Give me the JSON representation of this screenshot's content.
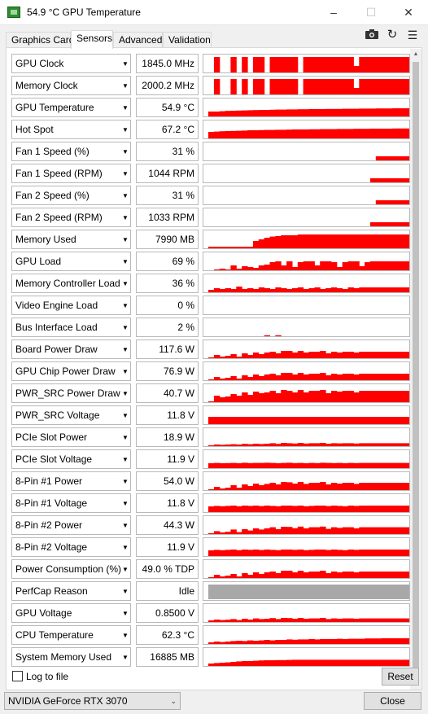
{
  "window": {
    "title": "54.9 °C GPU Temperature"
  },
  "tabs": [
    "Graphics Card",
    "Sensors",
    "Advanced",
    "Validation"
  ],
  "toolbar_icons": [
    "camera-icon",
    "refresh-icon",
    "menu-icon"
  ],
  "graph_color": "#ff0000",
  "perfcap_color": "#a8a8a8",
  "sensors": [
    {
      "name": "GPU Clock",
      "value": "1845.0 MHz",
      "graph": [
        0,
        0.95,
        0,
        0,
        0.95,
        0,
        0.95,
        0,
        0.95,
        0.95,
        0,
        0.95,
        0.95,
        0.95,
        0.95,
        0.95,
        0,
        0.95,
        0.95,
        0.95,
        0.95,
        0.95,
        0.95,
        0.95,
        0.95,
        0.95,
        0.4,
        0.95,
        0.95,
        0.95,
        0.95,
        0.95,
        0.95,
        0.95,
        0.95,
        0.95
      ]
    },
    {
      "name": "Memory Clock",
      "value": "2000.2 MHz",
      "graph": [
        0,
        0.95,
        0,
        0,
        0.95,
        0,
        0.95,
        0,
        0.95,
        0.95,
        0,
        0.95,
        0.95,
        0.95,
        0.95,
        0.95,
        0,
        0.95,
        0.95,
        0.95,
        0.95,
        0.95,
        0.95,
        0.95,
        0.95,
        0.95,
        0.4,
        0.95,
        0.95,
        0.95,
        0.95,
        0.95,
        0.95,
        0.95,
        0.95,
        0.95
      ]
    },
    {
      "name": "GPU Temperature",
      "value": "54.9 °C",
      "graph": [
        0.3,
        0.3,
        0.32,
        0.34,
        0.35,
        0.36,
        0.37,
        0.38,
        0.39,
        0.4,
        0.4,
        0.41,
        0.42,
        0.42,
        0.43,
        0.43,
        0.44,
        0.44,
        0.45,
        0.45,
        0.45,
        0.46,
        0.46,
        0.46,
        0.47,
        0.47,
        0.47,
        0.48,
        0.48,
        0.48,
        0.49,
        0.49,
        0.49,
        0.5,
        0.5,
        0.5
      ]
    },
    {
      "name": "Hot Spot",
      "value": "67.2 °C",
      "graph": [
        0.4,
        0.42,
        0.44,
        0.45,
        0.46,
        0.47,
        0.48,
        0.5,
        0.5,
        0.51,
        0.52,
        0.52,
        0.53,
        0.53,
        0.54,
        0.55,
        0.55,
        0.55,
        0.56,
        0.56,
        0.57,
        0.57,
        0.57,
        0.58,
        0.58,
        0.58,
        0.59,
        0.59,
        0.59,
        0.6,
        0.6,
        0.6,
        0.6,
        0.61,
        0.61,
        0.61
      ]
    },
    {
      "name": "Fan 1 Speed (%)",
      "value": "31 %",
      "graph": [
        0,
        0,
        0,
        0,
        0,
        0,
        0,
        0,
        0,
        0,
        0,
        0,
        0,
        0,
        0,
        0,
        0,
        0,
        0,
        0,
        0,
        0,
        0,
        0,
        0,
        0,
        0,
        0,
        0,
        0,
        0.25,
        0.25,
        0.25,
        0.25,
        0.25,
        0.25
      ]
    },
    {
      "name": "Fan 1 Speed (RPM)",
      "value": "1044 RPM",
      "graph": [
        0,
        0,
        0,
        0,
        0,
        0,
        0,
        0,
        0,
        0,
        0,
        0,
        0,
        0,
        0,
        0,
        0,
        0,
        0,
        0,
        0,
        0,
        0,
        0,
        0,
        0,
        0,
        0,
        0,
        0.25,
        0.25,
        0.25,
        0.25,
        0.25,
        0.25,
        0.25
      ]
    },
    {
      "name": "Fan 2 Speed (%)",
      "value": "31 %",
      "graph": [
        0,
        0,
        0,
        0,
        0,
        0,
        0,
        0,
        0,
        0,
        0,
        0,
        0,
        0,
        0,
        0,
        0,
        0,
        0,
        0,
        0,
        0,
        0,
        0,
        0,
        0,
        0,
        0,
        0,
        0,
        0.25,
        0.25,
        0.25,
        0.25,
        0.25,
        0.25
      ]
    },
    {
      "name": "Fan 2 Speed (RPM)",
      "value": "1033 RPM",
      "graph": [
        0,
        0,
        0,
        0,
        0,
        0,
        0,
        0,
        0,
        0,
        0,
        0,
        0,
        0,
        0,
        0,
        0,
        0,
        0,
        0,
        0,
        0,
        0,
        0,
        0,
        0,
        0,
        0,
        0,
        0.25,
        0.25,
        0.25,
        0.25,
        0.25,
        0.25,
        0.25
      ]
    },
    {
      "name": "Memory Used",
      "value": "7990 MB",
      "graph": [
        0.1,
        0.1,
        0.1,
        0.1,
        0.1,
        0.1,
        0.1,
        0.1,
        0.45,
        0.55,
        0.65,
        0.72,
        0.75,
        0.8,
        0.8,
        0.8,
        0.85,
        0.85,
        0.85,
        0.85,
        0.85,
        0.85,
        0.85,
        0.85,
        0.85,
        0.85,
        0.85,
        0.85,
        0.85,
        0.85,
        0.85,
        0.85,
        0.85,
        0.85,
        0.85,
        0.85
      ]
    },
    {
      "name": "GPU Load",
      "value": "69 %",
      "graph": [
        0,
        0.05,
        0.1,
        0.05,
        0.3,
        0.1,
        0.25,
        0.2,
        0.15,
        0.3,
        0.35,
        0.5,
        0.55,
        0.3,
        0.55,
        0.2,
        0.5,
        0.55,
        0.55,
        0.3,
        0.55,
        0.55,
        0.5,
        0.2,
        0.5,
        0.55,
        0.55,
        0.25,
        0.5,
        0.55,
        0.55,
        0.55,
        0.55,
        0.55,
        0.55,
        0.55
      ]
    },
    {
      "name": "Memory Controller Load",
      "value": "36 %",
      "graph": [
        0.15,
        0.25,
        0.2,
        0.25,
        0.2,
        0.35,
        0.2,
        0.25,
        0.2,
        0.3,
        0.25,
        0.2,
        0.3,
        0.25,
        0.2,
        0.25,
        0.3,
        0.2,
        0.25,
        0.3,
        0.2,
        0.25,
        0.3,
        0.25,
        0.2,
        0.3,
        0.25,
        0.3,
        0.3,
        0.3,
        0.3,
        0.3,
        0.3,
        0.3,
        0.3,
        0.3
      ]
    },
    {
      "name": "Video Engine Load",
      "value": "0 %",
      "graph": [
        0,
        0,
        0,
        0,
        0,
        0,
        0,
        0,
        0,
        0,
        0,
        0,
        0,
        0,
        0,
        0,
        0,
        0,
        0,
        0,
        0,
        0,
        0,
        0,
        0,
        0,
        0,
        0,
        0,
        0,
        0,
        0,
        0,
        0,
        0,
        0
      ]
    },
    {
      "name": "Bus Interface Load",
      "value": "2 %",
      "graph": [
        0,
        0,
        0,
        0,
        0,
        0,
        0,
        0,
        0,
        0,
        0.06,
        0,
        0.06,
        0,
        0,
        0,
        0,
        0,
        0,
        0,
        0,
        0,
        0,
        0,
        0,
        0,
        0,
        0,
        0,
        0,
        0,
        0,
        0,
        0,
        0,
        0
      ]
    },
    {
      "name": "Board Power Draw",
      "value": "117.6 W",
      "graph": [
        0.05,
        0.2,
        0.1,
        0.15,
        0.25,
        0.1,
        0.3,
        0.2,
        0.35,
        0.25,
        0.35,
        0.4,
        0.3,
        0.45,
        0.45,
        0.35,
        0.45,
        0.35,
        0.4,
        0.4,
        0.45,
        0.3,
        0.4,
        0.35,
        0.4,
        0.4,
        0.35,
        0.4,
        0.4,
        0.4,
        0.4,
        0.4,
        0.4,
        0.4,
        0.4,
        0.4
      ]
    },
    {
      "name": "GPU Chip Power Draw",
      "value": "76.9 W",
      "graph": [
        0.05,
        0.2,
        0.1,
        0.15,
        0.25,
        0.1,
        0.3,
        0.2,
        0.35,
        0.25,
        0.35,
        0.4,
        0.3,
        0.45,
        0.45,
        0.35,
        0.45,
        0.35,
        0.4,
        0.4,
        0.45,
        0.3,
        0.4,
        0.35,
        0.4,
        0.4,
        0.35,
        0.4,
        0.4,
        0.4,
        0.4,
        0.4,
        0.4,
        0.4,
        0.4,
        0.4
      ]
    },
    {
      "name": "PWR_SRC Power Draw",
      "value": "40.7 W",
      "graph": [
        0.05,
        0.4,
        0.3,
        0.35,
        0.5,
        0.4,
        0.6,
        0.45,
        0.65,
        0.55,
        0.6,
        0.7,
        0.55,
        0.75,
        0.7,
        0.6,
        0.75,
        0.6,
        0.7,
        0.7,
        0.75,
        0.55,
        0.7,
        0.65,
        0.7,
        0.7,
        0.6,
        0.7,
        0.7,
        0.7,
        0.7,
        0.7,
        0.7,
        0.7,
        0.7,
        0.7
      ]
    },
    {
      "name": "PWR_SRC Voltage",
      "value": "11.8 V",
      "graph": [
        0.45,
        0.45,
        0.45,
        0.45,
        0.45,
        0.45,
        0.45,
        0.45,
        0.45,
        0.45,
        0.45,
        0.45,
        0.45,
        0.45,
        0.45,
        0.45,
        0.45,
        0.45,
        0.45,
        0.45,
        0.45,
        0.45,
        0.45,
        0.45,
        0.45,
        0.45,
        0.45,
        0.45,
        0.45,
        0.45,
        0.45,
        0.45,
        0.45,
        0.45,
        0.45,
        0.45
      ]
    },
    {
      "name": "PCIe Slot Power",
      "value": "18.9 W",
      "graph": [
        0.05,
        0.1,
        0.08,
        0.1,
        0.12,
        0.1,
        0.14,
        0.12,
        0.15,
        0.13,
        0.15,
        0.18,
        0.14,
        0.2,
        0.18,
        0.16,
        0.2,
        0.16,
        0.18,
        0.18,
        0.2,
        0.15,
        0.18,
        0.17,
        0.18,
        0.18,
        0.16,
        0.18,
        0.18,
        0.18,
        0.18,
        0.18,
        0.18,
        0.18,
        0.18,
        0.18
      ]
    },
    {
      "name": "PCIe Slot Voltage",
      "value": "11.9 V",
      "graph": [
        0.3,
        0.32,
        0.3,
        0.31,
        0.32,
        0.3,
        0.33,
        0.31,
        0.32,
        0.32,
        0.33,
        0.32,
        0.3,
        0.32,
        0.33,
        0.31,
        0.32,
        0.3,
        0.32,
        0.31,
        0.33,
        0.32,
        0.31,
        0.32,
        0.3,
        0.32,
        0.31,
        0.32,
        0.32,
        0.32,
        0.32,
        0.32,
        0.32,
        0.32,
        0.32,
        0.32
      ]
    },
    {
      "name": "8-Pin #1 Power",
      "value": "54.0 W",
      "graph": [
        0.05,
        0.2,
        0.1,
        0.15,
        0.3,
        0.15,
        0.35,
        0.25,
        0.4,
        0.3,
        0.38,
        0.45,
        0.35,
        0.5,
        0.48,
        0.4,
        0.5,
        0.38,
        0.45,
        0.45,
        0.5,
        0.35,
        0.45,
        0.4,
        0.45,
        0.45,
        0.38,
        0.45,
        0.45,
        0.45,
        0.45,
        0.45,
        0.45,
        0.45,
        0.45,
        0.45
      ]
    },
    {
      "name": "8-Pin #1 Voltage",
      "value": "11.8 V",
      "graph": [
        0.35,
        0.38,
        0.36,
        0.38,
        0.4,
        0.36,
        0.4,
        0.38,
        0.4,
        0.37,
        0.4,
        0.38,
        0.36,
        0.4,
        0.4,
        0.38,
        0.4,
        0.36,
        0.38,
        0.4,
        0.4,
        0.37,
        0.4,
        0.38,
        0.36,
        0.4,
        0.38,
        0.4,
        0.4,
        0.4,
        0.4,
        0.4,
        0.4,
        0.4,
        0.4,
        0.4
      ]
    },
    {
      "name": "8-Pin #2 Power",
      "value": "44.3 W",
      "graph": [
        0.05,
        0.18,
        0.1,
        0.14,
        0.28,
        0.12,
        0.3,
        0.22,
        0.35,
        0.28,
        0.35,
        0.42,
        0.3,
        0.45,
        0.44,
        0.36,
        0.46,
        0.35,
        0.42,
        0.42,
        0.46,
        0.32,
        0.42,
        0.38,
        0.42,
        0.42,
        0.35,
        0.42,
        0.42,
        0.42,
        0.42,
        0.42,
        0.42,
        0.42,
        0.42,
        0.42
      ]
    },
    {
      "name": "8-Pin #2 Voltage",
      "value": "11.9 V",
      "graph": [
        0.35,
        0.38,
        0.36,
        0.38,
        0.4,
        0.36,
        0.4,
        0.38,
        0.4,
        0.37,
        0.4,
        0.38,
        0.36,
        0.4,
        0.4,
        0.38,
        0.4,
        0.36,
        0.38,
        0.4,
        0.4,
        0.37,
        0.4,
        0.38,
        0.36,
        0.4,
        0.38,
        0.4,
        0.4,
        0.4,
        0.4,
        0.4,
        0.4,
        0.4,
        0.4,
        0.4
      ]
    },
    {
      "name": "Power Consumption (%)",
      "value": "49.0 % TDP",
      "graph": [
        0.05,
        0.2,
        0.1,
        0.15,
        0.25,
        0.1,
        0.3,
        0.2,
        0.35,
        0.25,
        0.35,
        0.4,
        0.3,
        0.45,
        0.45,
        0.35,
        0.45,
        0.35,
        0.4,
        0.4,
        0.45,
        0.3,
        0.4,
        0.35,
        0.4,
        0.4,
        0.35,
        0.4,
        0.4,
        0.4,
        0.4,
        0.4,
        0.4,
        0.4,
        0.4,
        0.4
      ]
    },
    {
      "name": "PerfCap Reason",
      "value": "Idle",
      "graph": []
    },
    {
      "name": "GPU Voltage",
      "value": "0.8500 V",
      "graph": [
        0.1,
        0.15,
        0.12,
        0.14,
        0.18,
        0.12,
        0.2,
        0.15,
        0.22,
        0.18,
        0.2,
        0.24,
        0.18,
        0.25,
        0.24,
        0.2,
        0.25,
        0.2,
        0.22,
        0.22,
        0.25,
        0.18,
        0.22,
        0.2,
        0.22,
        0.22,
        0.2,
        0.22,
        0.22,
        0.22,
        0.22,
        0.22,
        0.22,
        0.22,
        0.22,
        0.22
      ]
    },
    {
      "name": "CPU Temperature",
      "value": "62.3 °C",
      "graph": [
        0.1,
        0.15,
        0.12,
        0.15,
        0.18,
        0.2,
        0.18,
        0.22,
        0.2,
        0.22,
        0.25,
        0.22,
        0.25,
        0.25,
        0.28,
        0.26,
        0.28,
        0.28,
        0.3,
        0.28,
        0.3,
        0.3,
        0.3,
        0.32,
        0.3,
        0.32,
        0.32,
        0.32,
        0.34,
        0.34,
        0.34,
        0.35,
        0.35,
        0.35,
        0.35,
        0.35
      ]
    },
    {
      "name": "System Memory Used",
      "value": "16885 MB",
      "graph": [
        0.15,
        0.18,
        0.2,
        0.22,
        0.25,
        0.28,
        0.3,
        0.3,
        0.32,
        0.34,
        0.35,
        0.35,
        0.36,
        0.36,
        0.37,
        0.38,
        0.38,
        0.38,
        0.38,
        0.38,
        0.38,
        0.38,
        0.38,
        0.38,
        0.38,
        0.38,
        0.38,
        0.38,
        0.38,
        0.38,
        0.38,
        0.38,
        0.38,
        0.38,
        0.38,
        0.38
      ]
    }
  ],
  "footer": {
    "log_label": "Log to file",
    "reset_label": "Reset",
    "gpu_select": "NVIDIA GeForce RTX 3070",
    "close_label": "Close"
  }
}
